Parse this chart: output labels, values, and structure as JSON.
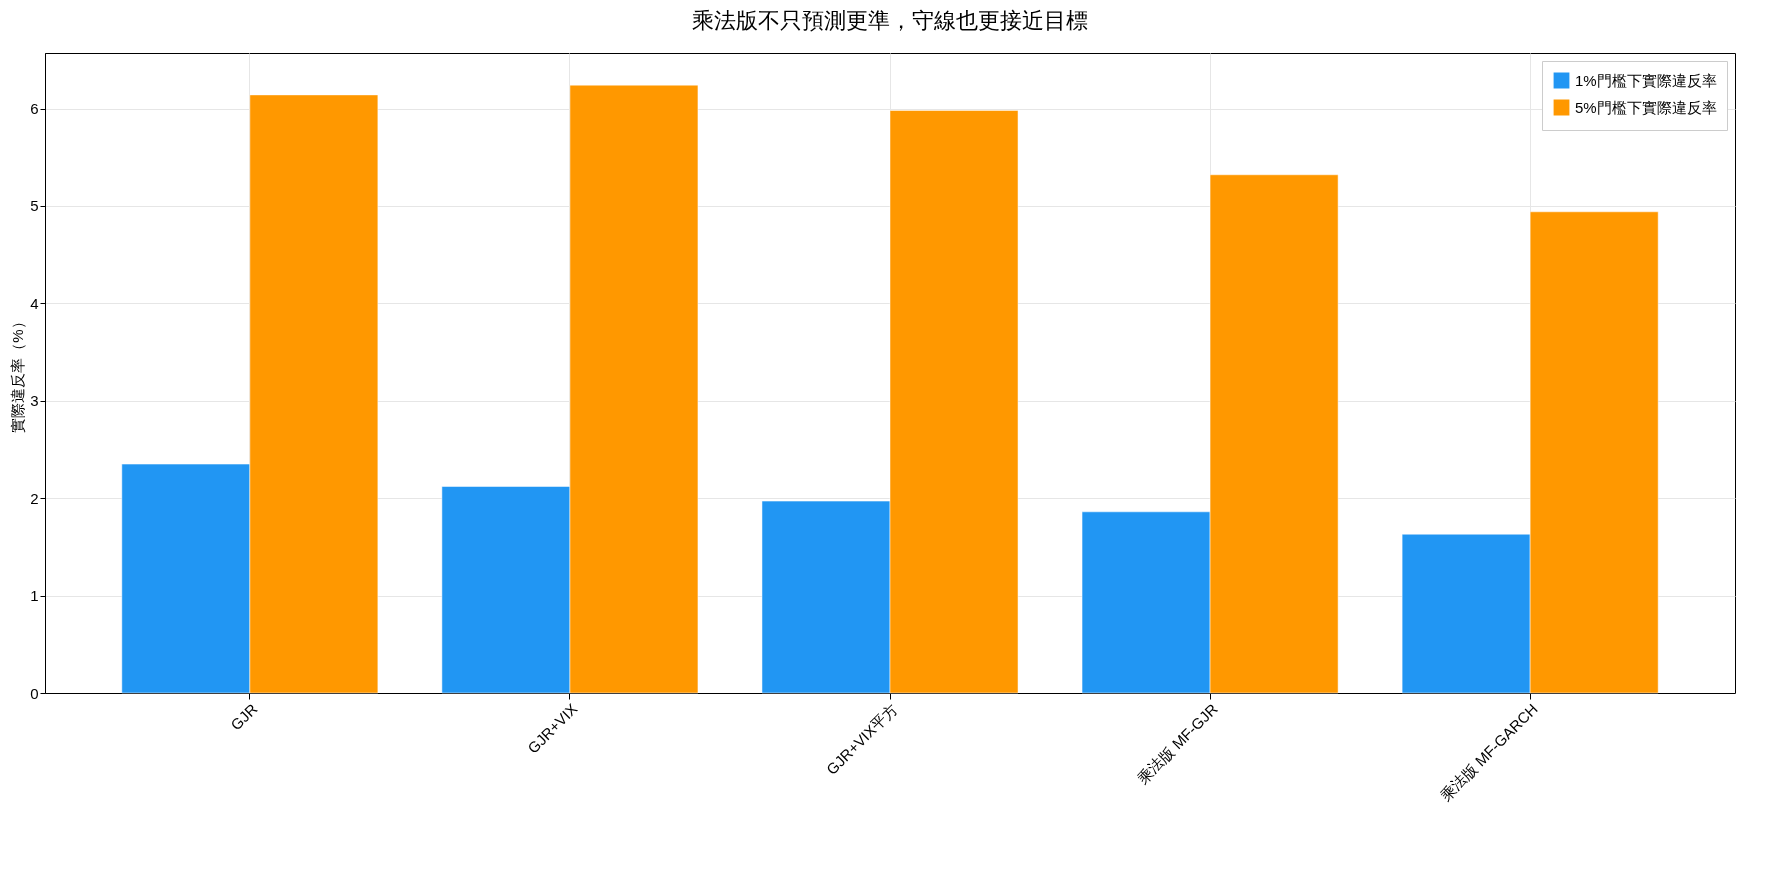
{
  "chart_data": {
    "type": "bar",
    "title": "乘法版不只預測更準，守線也更接近目標",
    "ylabel": "實際違反率（%）",
    "categories": [
      "GJR",
      "GJR+VIX",
      "GJR+VIX平方",
      "乘法版 MF-GJR",
      "乘法版 MF-GARCH"
    ],
    "series": [
      {
        "name": "1%門檻下實際違反率",
        "color": "#2196f3",
        "values": [
          2.35,
          2.12,
          1.97,
          1.86,
          1.63
        ]
      },
      {
        "name": "5%門檻下實際違反率",
        "color": "#ff9800",
        "values": [
          6.14,
          6.24,
          5.98,
          5.32,
          4.94
        ]
      }
    ],
    "ylim": [
      0,
      6.57
    ],
    "yticks": [
      0,
      1,
      2,
      3,
      4,
      5,
      6
    ],
    "grid": true,
    "legend": "top right"
  }
}
